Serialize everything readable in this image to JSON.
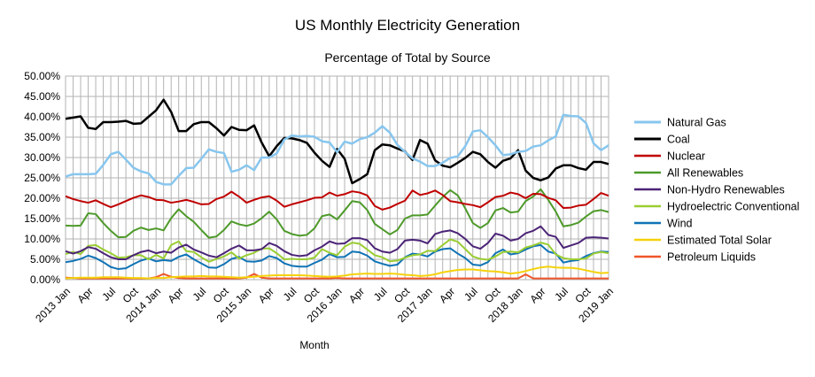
{
  "chart_data": {
    "type": "line",
    "title": "US Monthly Electricity Generation",
    "subtitle": "Percentage of Total by Source",
    "xlabel": "Month",
    "ylabel": "",
    "ylim": [
      0,
      50
    ],
    "y_ticks": [
      "0.00%",
      "5.00%",
      "10.00%",
      "15.00%",
      "20.00%",
      "25.00%",
      "30.00%",
      "35.00%",
      "40.00%",
      "45.00%",
      "50.00%"
    ],
    "x_ticks": [
      {
        "i": 0,
        "label": "2013 Jan"
      },
      {
        "i": 3,
        "label": "Apr"
      },
      {
        "i": 6,
        "label": "Jul"
      },
      {
        "i": 9,
        "label": "Oct"
      },
      {
        "i": 12,
        "label": "2014 Jan"
      },
      {
        "i": 15,
        "label": "Apr"
      },
      {
        "i": 18,
        "label": "Jul"
      },
      {
        "i": 21,
        "label": "Oct"
      },
      {
        "i": 24,
        "label": "2015 Jan"
      },
      {
        "i": 27,
        "label": "Apr"
      },
      {
        "i": 30,
        "label": "Jul"
      },
      {
        "i": 33,
        "label": "Oct"
      },
      {
        "i": 36,
        "label": "2016 Jan"
      },
      {
        "i": 39,
        "label": "Apr"
      },
      {
        "i": 42,
        "label": "Jul"
      },
      {
        "i": 45,
        "label": "Oct"
      },
      {
        "i": 48,
        "label": "2017 Jan"
      },
      {
        "i": 51,
        "label": "Apr"
      },
      {
        "i": 54,
        "label": "Jul"
      },
      {
        "i": 57,
        "label": "Oct"
      },
      {
        "i": 60,
        "label": "2018 Jan"
      },
      {
        "i": 63,
        "label": "Apr"
      },
      {
        "i": 66,
        "label": "Jul"
      },
      {
        "i": 69,
        "label": "Oct"
      },
      {
        "i": 72,
        "label": "2019 Jan"
      }
    ],
    "grid": "vertical and horizontal",
    "legend_position": "right",
    "series": [
      {
        "name": "Natural Gas",
        "color": "#87c6ee",
        "width": 2.5,
        "values": [
          25.3,
          25.9,
          25.9,
          25.9,
          26.0,
          28.2,
          30.8,
          31.4,
          29.5,
          27.5,
          26.6,
          26.1,
          24.0,
          23.4,
          23.4,
          25.5,
          27.4,
          27.5,
          29.7,
          32.0,
          31.4,
          31.1,
          26.5,
          27.0,
          28.1,
          26.9,
          30.0,
          30.0,
          31.0,
          34.4,
          35.4,
          35.2,
          35.3,
          35.1,
          34.0,
          33.7,
          31.3,
          33.9,
          33.4,
          34.5,
          35.0,
          36.1,
          37.7,
          36.1,
          33.1,
          31.4,
          29.8,
          29.0,
          27.9,
          27.9,
          28.7,
          29.9,
          30.3,
          32.8,
          36.4,
          36.7,
          35.0,
          33.0,
          30.6,
          30.8,
          31.4,
          31.6,
          32.7,
          33.0,
          34.2,
          35.2,
          40.5,
          40.2,
          40.1,
          38.5,
          33.5,
          31.8,
          33.0
        ]
      },
      {
        "name": "Coal",
        "color": "#000000",
        "width": 2.5,
        "values": [
          39.5,
          39.8,
          40.1,
          37.3,
          37.0,
          38.7,
          38.7,
          38.8,
          39.0,
          38.3,
          38.4,
          40.0,
          41.6,
          44.2,
          41.2,
          36.5,
          36.5,
          38.2,
          38.7,
          38.7,
          37.2,
          35.4,
          37.5,
          36.8,
          36.7,
          37.9,
          33.7,
          30.3,
          32.8,
          34.8,
          34.7,
          34.3,
          33.6,
          31.2,
          29.2,
          27.7,
          32.1,
          29.7,
          23.7,
          24.7,
          25.9,
          31.8,
          33.2,
          33.0,
          32.2,
          31.5,
          29.4,
          34.3,
          33.4,
          29.3,
          28.0,
          27.6,
          28.7,
          29.9,
          31.4,
          30.8,
          28.9,
          27.5,
          29.2,
          29.8,
          31.8,
          26.8,
          25.0,
          24.4,
          25.1,
          27.3,
          28.1,
          28.1,
          27.4,
          27.0,
          28.9,
          28.9,
          28.4
        ]
      },
      {
        "name": "Nuclear",
        "color": "#c00000",
        "width": 2,
        "values": [
          20.5,
          19.8,
          19.3,
          18.9,
          19.5,
          18.6,
          17.8,
          18.5,
          19.3,
          20.1,
          20.7,
          20.3,
          19.6,
          19.5,
          18.9,
          19.2,
          19.6,
          19.1,
          18.5,
          18.6,
          19.8,
          20.4,
          21.6,
          20.4,
          18.9,
          19.6,
          20.2,
          20.5,
          19.4,
          17.9,
          18.5,
          19.0,
          19.5,
          20.1,
          20.2,
          21.4,
          20.6,
          21.0,
          21.7,
          21.4,
          20.7,
          18.1,
          17.2,
          17.7,
          18.6,
          19.4,
          21.9,
          20.8,
          21.2,
          21.9,
          20.8,
          19.3,
          19.0,
          18.6,
          18.3,
          17.8,
          19.0,
          20.3,
          20.6,
          21.4,
          21.0,
          20.0,
          21.1,
          21.0,
          20.1,
          19.5,
          17.6,
          17.7,
          18.2,
          18.4,
          19.8,
          21.3,
          20.6
        ]
      },
      {
        "name": "All Renewables",
        "color": "#4e9a2a",
        "width": 2,
        "values": [
          13.3,
          13.2,
          13.3,
          16.3,
          16.1,
          13.9,
          12.0,
          10.4,
          10.5,
          12.0,
          12.8,
          12.2,
          12.6,
          12.1,
          15.1,
          17.3,
          15.6,
          14.2,
          12.2,
          10.3,
          10.6,
          12.2,
          14.3,
          13.6,
          13.2,
          13.8,
          15.1,
          16.7,
          14.8,
          12.0,
          11.2,
          10.8,
          11.0,
          12.6,
          15.6,
          16.0,
          14.8,
          17.0,
          19.3,
          19.0,
          17.1,
          13.7,
          12.4,
          11.1,
          12.2,
          15.0,
          15.8,
          15.8,
          16.0,
          18.2,
          20.3,
          22.0,
          20.7,
          17.5,
          13.9,
          12.7,
          13.9,
          17.0,
          17.6,
          16.5,
          16.7,
          19.3,
          20.4,
          22.2,
          19.6,
          16.7,
          13.1,
          13.4,
          14.0,
          15.5,
          16.8,
          17.1,
          16.6
        ]
      },
      {
        "name": "Non-Hydro Renewables",
        "color": "#4b2377",
        "width": 2,
        "values": [
          7.0,
          6.4,
          7.0,
          8.0,
          7.6,
          6.5,
          5.5,
          5.0,
          5.0,
          6.0,
          6.8,
          7.2,
          6.5,
          6.9,
          6.6,
          7.9,
          8.6,
          7.4,
          6.7,
          5.9,
          5.5,
          6.5,
          7.6,
          8.4,
          7.2,
          7.2,
          7.5,
          9.0,
          8.3,
          7.0,
          6.1,
          5.8,
          6.0,
          7.2,
          8.1,
          9.4,
          8.8,
          8.9,
          10.2,
          10.2,
          9.7,
          7.7,
          6.9,
          6.6,
          7.5,
          9.6,
          9.8,
          9.6,
          8.9,
          11.2,
          11.8,
          12.1,
          11.4,
          10.0,
          8.2,
          7.6,
          9.0,
          11.3,
          10.8,
          9.6,
          10.0,
          11.4,
          12.0,
          13.1,
          11.0,
          10.5,
          7.8,
          8.4,
          9.0,
          10.3,
          10.4,
          10.3,
          10.1
        ]
      },
      {
        "name": "Hydroelectric Conventional",
        "color": "#9acd32",
        "width": 2,
        "values": [
          6.3,
          6.8,
          6.3,
          8.3,
          8.5,
          7.4,
          6.5,
          5.4,
          5.5,
          6.0,
          6.0,
          5.0,
          6.1,
          5.2,
          8.5,
          9.4,
          7.0,
          6.8,
          5.5,
          4.4,
          5.1,
          5.7,
          6.7,
          5.2,
          6.0,
          6.6,
          7.6,
          7.7,
          6.5,
          5.0,
          5.1,
          5.0,
          5.0,
          5.4,
          7.5,
          6.6,
          6.0,
          8.1,
          9.1,
          8.8,
          7.4,
          6.0,
          5.5,
          4.5,
          4.7,
          5.4,
          6.0,
          6.2,
          7.1,
          7.0,
          8.5,
          9.9,
          9.3,
          7.5,
          5.7,
          5.1,
          4.9,
          5.7,
          6.8,
          6.9,
          6.7,
          7.9,
          8.4,
          9.1,
          8.6,
          6.2,
          5.3,
          5.0,
          5.0,
          5.2,
          6.4,
          6.8,
          6.5
        ]
      },
      {
        "name": "Wind",
        "color": "#0f73b6",
        "width": 2,
        "values": [
          4.3,
          4.6,
          5.1,
          5.9,
          5.3,
          4.3,
          3.1,
          2.6,
          2.8,
          3.8,
          4.7,
          5.2,
          4.5,
          4.8,
          4.6,
          5.6,
          6.2,
          5.0,
          4.0,
          3.0,
          2.9,
          3.8,
          5.1,
          5.6,
          4.5,
          4.4,
          4.7,
          5.8,
          5.3,
          4.0,
          3.4,
          3.2,
          3.2,
          4.1,
          4.9,
          6.3,
          5.5,
          5.6,
          6.9,
          6.7,
          5.9,
          4.5,
          3.9,
          3.4,
          3.7,
          5.5,
          6.4,
          6.2,
          5.7,
          6.9,
          7.5,
          7.7,
          6.4,
          5.3,
          3.7,
          3.5,
          4.3,
          6.5,
          7.4,
          6.2,
          6.5,
          7.4,
          8.2,
          8.5,
          6.9,
          6.4,
          4.2,
          4.6,
          4.8,
          5.8,
          6.5,
          6.9,
          6.8
        ]
      },
      {
        "name": "Estimated Total Solar",
        "color": "#f5d20b",
        "width": 2,
        "values": [
          0.3,
          0.4,
          0.5,
          0.5,
          0.5,
          0.6,
          0.6,
          0.6,
          0.5,
          0.4,
          0.4,
          0.3,
          0.4,
          0.4,
          0.6,
          0.7,
          0.8,
          0.8,
          0.9,
          0.8,
          0.8,
          0.7,
          0.6,
          0.5,
          0.6,
          0.7,
          0.9,
          1.0,
          1.1,
          1.1,
          1.1,
          1.1,
          1.0,
          0.9,
          0.8,
          0.7,
          0.8,
          1.0,
          1.3,
          1.4,
          1.5,
          1.4,
          1.4,
          1.5,
          1.4,
          1.2,
          1.1,
          0.9,
          1.0,
          1.3,
          1.8,
          2.1,
          2.4,
          2.5,
          2.5,
          2.3,
          2.1,
          2.0,
          1.8,
          1.5,
          1.7,
          2.1,
          2.6,
          3.0,
          3.2,
          3.0,
          2.9,
          2.9,
          2.7,
          2.3,
          1.9,
          1.6,
          1.7
        ]
      },
      {
        "name": "Petroleum Liquids",
        "color": "#f0562a",
        "width": 2,
        "values": [
          0.5,
          0.4,
          0.3,
          0.3,
          0.3,
          0.3,
          0.3,
          0.3,
          0.3,
          0.3,
          0.3,
          0.3,
          0.6,
          1.4,
          0.7,
          0.4,
          0.3,
          0.3,
          0.3,
          0.3,
          0.3,
          0.3,
          0.3,
          0.3,
          0.5,
          1.4,
          0.5,
          0.3,
          0.3,
          0.3,
          0.3,
          0.3,
          0.3,
          0.3,
          0.3,
          0.3,
          0.4,
          0.3,
          0.3,
          0.3,
          0.3,
          0.3,
          0.3,
          0.3,
          0.3,
          0.3,
          0.3,
          0.3,
          0.3,
          0.3,
          0.3,
          0.3,
          0.3,
          0.3,
          0.3,
          0.3,
          0.3,
          0.3,
          0.3,
          0.3,
          0.3,
          1.3,
          0.3,
          0.3,
          0.3,
          0.3,
          0.3,
          0.3,
          0.3,
          0.3,
          0.3,
          0.3,
          0.3
        ]
      }
    ]
  }
}
